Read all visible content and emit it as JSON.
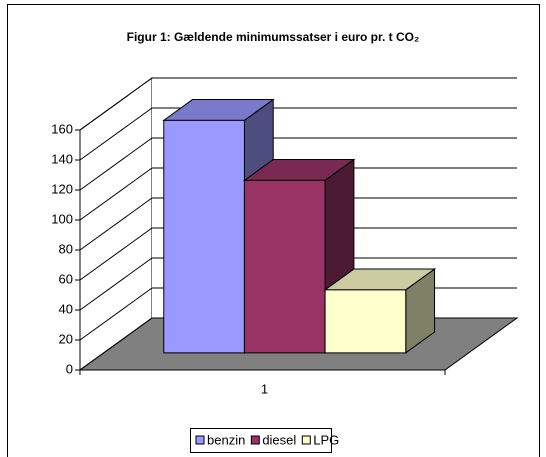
{
  "chart_data": {
    "type": "bar3d",
    "title": "Figur 1: Gældende minimumssatser i euro pr. t CO₂",
    "categories": [
      "1"
    ],
    "series": [
      {
        "name": "benzin",
        "color": "#9999FF",
        "values": [
          155
        ]
      },
      {
        "name": "diesel",
        "color": "#993366",
        "values": [
          115
        ]
      },
      {
        "name": "LPG",
        "color": "#FFFFCC",
        "values": [
          42
        ]
      }
    ],
    "ylim": [
      0,
      160
    ],
    "yticks": [
      0,
      20,
      40,
      60,
      80,
      100,
      120,
      140,
      160
    ],
    "grid": true,
    "legend": "bottom"
  }
}
